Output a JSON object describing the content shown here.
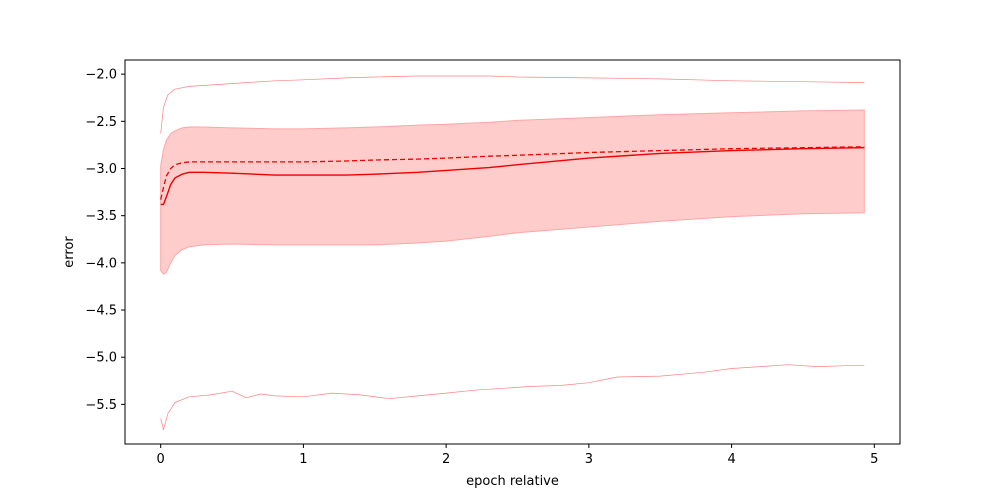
{
  "chart_data": {
    "type": "line",
    "title": "",
    "xlabel": "epoch relative",
    "ylabel": "error",
    "xlim": [
      -0.25,
      5.18
    ],
    "ylim": [
      -5.92,
      -1.85
    ],
    "x_ticks": [
      0,
      1,
      2,
      3,
      4,
      5
    ],
    "y_ticks": [
      -2.0,
      -2.5,
      -3.0,
      -3.5,
      -4.0,
      -4.5,
      -5.0,
      -5.5
    ],
    "x_tick_labels": [
      "0",
      "1",
      "2",
      "3",
      "4",
      "5"
    ],
    "y_tick_labels": [
      "−2.0",
      "−2.5",
      "−3.0",
      "−3.5",
      "−4.0",
      "−4.5",
      "−5.0",
      "−5.5"
    ],
    "grid": false,
    "colors": {
      "main": "#ee0000",
      "band": "#ffcccc",
      "band_edge": "#ffa5a5",
      "thin": "#ff8080"
    },
    "band": {
      "x": [
        0,
        0.02,
        0.04,
        0.07,
        0.1,
        0.15,
        0.2,
        0.3,
        0.5,
        0.8,
        1.0,
        1.3,
        1.5,
        1.8,
        2.0,
        2.3,
        2.5,
        3.0,
        3.5,
        4.0,
        4.5,
        4.93
      ],
      "upper": [
        -2.97,
        -2.8,
        -2.7,
        -2.63,
        -2.6,
        -2.57,
        -2.56,
        -2.56,
        -2.57,
        -2.58,
        -2.58,
        -2.57,
        -2.56,
        -2.54,
        -2.53,
        -2.51,
        -2.49,
        -2.46,
        -2.43,
        -2.41,
        -2.39,
        -2.38
      ],
      "lower": [
        -4.08,
        -4.12,
        -4.1,
        -4.0,
        -3.92,
        -3.86,
        -3.83,
        -3.81,
        -3.8,
        -3.81,
        -3.81,
        -3.81,
        -3.81,
        -3.79,
        -3.77,
        -3.72,
        -3.68,
        -3.62,
        -3.56,
        -3.51,
        -3.48,
        -3.47
      ]
    },
    "series": [
      {
        "style": "solid",
        "x": [
          0,
          0.02,
          0.04,
          0.07,
          0.1,
          0.15,
          0.2,
          0.3,
          0.5,
          0.8,
          1.0,
          1.3,
          1.5,
          1.8,
          2.0,
          2.3,
          2.5,
          3.0,
          3.5,
          4.0,
          4.5,
          4.93
        ],
        "y": [
          -3.38,
          -3.38,
          -3.3,
          -3.17,
          -3.1,
          -3.06,
          -3.04,
          -3.04,
          -3.05,
          -3.07,
          -3.07,
          -3.07,
          -3.06,
          -3.04,
          -3.02,
          -2.99,
          -2.96,
          -2.89,
          -2.84,
          -2.81,
          -2.79,
          -2.78
        ]
      },
      {
        "style": "dashed",
        "x": [
          0,
          0.02,
          0.04,
          0.07,
          0.1,
          0.15,
          0.2,
          0.3,
          0.5,
          0.8,
          1.0,
          1.3,
          1.5,
          1.8,
          2.0,
          2.3,
          2.5,
          3.0,
          3.5,
          4.0,
          4.5,
          4.93
        ],
        "y": [
          -3.33,
          -3.2,
          -3.08,
          -3.0,
          -2.96,
          -2.94,
          -2.93,
          -2.93,
          -2.93,
          -2.93,
          -2.93,
          -2.92,
          -2.91,
          -2.9,
          -2.89,
          -2.87,
          -2.86,
          -2.83,
          -2.81,
          -2.79,
          -2.78,
          -2.77
        ]
      },
      {
        "style": "thin",
        "x": [
          0,
          0.02,
          0.05,
          0.1,
          0.2,
          0.4,
          0.6,
          0.8,
          1.0,
          1.3,
          1.5,
          1.8,
          2.0,
          2.3,
          2.5,
          3.0,
          3.5,
          4.0,
          4.5,
          4.93
        ],
        "y": [
          -2.63,
          -2.35,
          -2.22,
          -2.16,
          -2.13,
          -2.11,
          -2.09,
          -2.07,
          -2.06,
          -2.04,
          -2.03,
          -2.02,
          -2.02,
          -2.02,
          -2.03,
          -2.04,
          -2.05,
          -2.07,
          -2.08,
          -2.09
        ]
      },
      {
        "style": "thin",
        "x": [
          0,
          0.02,
          0.05,
          0.1,
          0.2,
          0.35,
          0.5,
          0.6,
          0.7,
          0.8,
          1.0,
          1.2,
          1.4,
          1.6,
          1.8,
          2.0,
          2.2,
          2.4,
          2.6,
          2.8,
          3.0,
          3.2,
          3.5,
          3.8,
          4.0,
          4.2,
          4.4,
          4.6,
          4.8,
          4.93
        ],
        "y": [
          -5.65,
          -5.77,
          -5.6,
          -5.48,
          -5.42,
          -5.4,
          -5.36,
          -5.43,
          -5.39,
          -5.41,
          -5.42,
          -5.38,
          -5.4,
          -5.44,
          -5.41,
          -5.38,
          -5.35,
          -5.33,
          -5.31,
          -5.3,
          -5.27,
          -5.21,
          -5.2,
          -5.16,
          -5.12,
          -5.1,
          -5.08,
          -5.1,
          -5.09,
          -5.09
        ]
      }
    ]
  }
}
